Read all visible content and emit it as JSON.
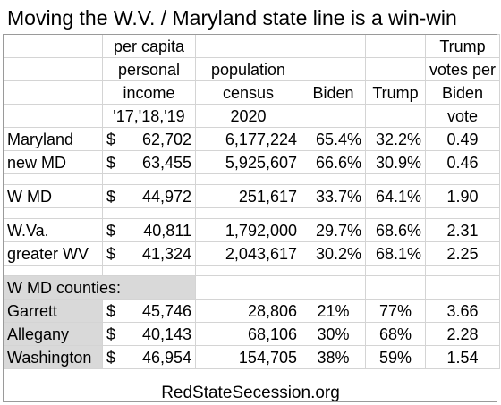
{
  "title": "Moving the W.V. / Maryland state line is a win-win",
  "headers": {
    "income": [
      "per capita",
      "personal",
      "income",
      "'17,'18,'19"
    ],
    "population": [
      "population",
      "census",
      "2020"
    ],
    "biden": "Biden",
    "trump": "Trump",
    "ratio": [
      "Trump",
      "votes per",
      "Biden",
      "vote"
    ]
  },
  "group1": [
    {
      "name": "Maryland",
      "income": "62,702",
      "population": "6,177,224",
      "biden": "65.4%",
      "trump": "32.2%",
      "ratio": "0.49"
    },
    {
      "name": "new MD",
      "income": "63,455",
      "population": "5,925,607",
      "biden": "66.6%",
      "trump": "30.9%",
      "ratio": "0.46"
    }
  ],
  "group2": [
    {
      "name": "W MD",
      "income": "44,972",
      "population": "251,617",
      "biden": "33.7%",
      "trump": "64.1%",
      "ratio": "1.90"
    }
  ],
  "group3": [
    {
      "name": "W.Va.",
      "income": "40,811",
      "population": "1,792,000",
      "biden": "29.7%",
      "trump": "68.6%",
      "ratio": "2.31"
    },
    {
      "name": "greater WV",
      "income": "41,324",
      "population": "2,043,617",
      "biden": "30.2%",
      "trump": "68.1%",
      "ratio": "2.25"
    }
  ],
  "counties_label": "W MD counties:",
  "counties": [
    {
      "name": "Garrett",
      "income": "45,746",
      "population": "28,806",
      "biden": "21%",
      "trump": "77%",
      "ratio": "3.66"
    },
    {
      "name": "Allegany",
      "income": "40,143",
      "population": "68,106",
      "biden": "30%",
      "trump": "68%",
      "ratio": "2.28"
    },
    {
      "name": "Washington",
      "income": "46,954",
      "population": "154,705",
      "biden": "38%",
      "trump": "59%",
      "ratio": "1.54"
    }
  ],
  "currency": "$",
  "footer": "RedStateSecession.org"
}
